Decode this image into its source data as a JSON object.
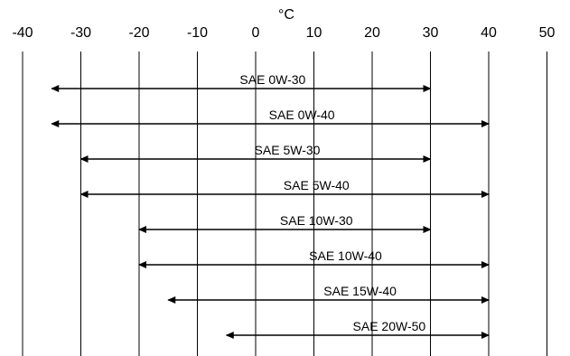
{
  "chart_data": {
    "type": "range",
    "unit": "°C",
    "x_ticks": [
      -40,
      -30,
      -20,
      -10,
      0,
      10,
      20,
      30,
      40,
      50
    ],
    "xlim": [
      -40,
      50
    ],
    "grid": true,
    "series": [
      {
        "name": "SAE 0W-30",
        "min": -35,
        "max": 30
      },
      {
        "name": "SAE 0W-40",
        "min": -35,
        "max": 40
      },
      {
        "name": "SAE 5W-30",
        "min": -30,
        "max": 30
      },
      {
        "name": "SAE 5W-40",
        "min": -30,
        "max": 40
      },
      {
        "name": "SAE 10W-30",
        "min": -20,
        "max": 30
      },
      {
        "name": "SAE 10W-40",
        "min": -20,
        "max": 40
      },
      {
        "name": "SAE 15W-40",
        "min": -15,
        "max": 40
      },
      {
        "name": "SAE 20W-50",
        "min": -5,
        "max": 40
      }
    ]
  }
}
